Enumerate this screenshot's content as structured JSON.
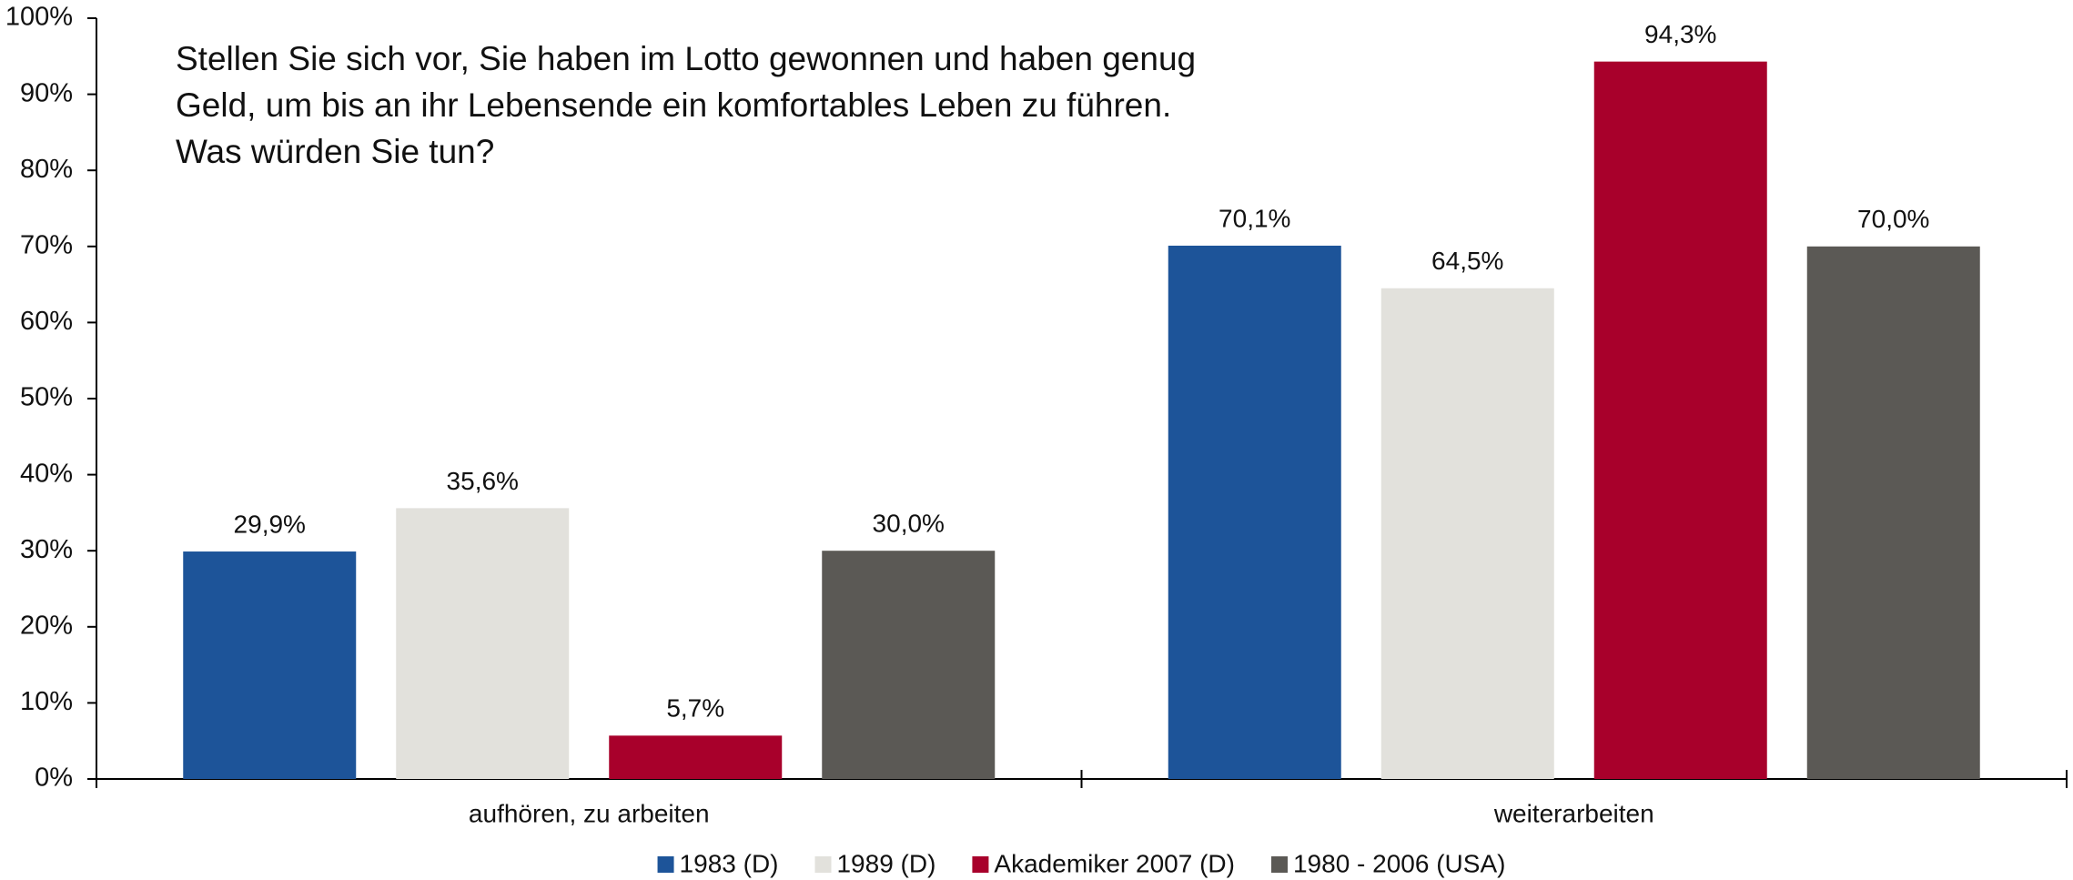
{
  "chart_data": {
    "type": "bar",
    "annotation": [
      "Stellen Sie sich vor, Sie haben im Lotto gewonnen und haben genug",
      "Geld, um bis an ihr Lebensende ein komfortables Leben zu führen.",
      "Was würden Sie tun?"
    ],
    "categories": [
      "aufhören, zu arbeiten",
      "weiterarbeiten"
    ],
    "series": [
      {
        "name": "1983 (D)",
        "color": "#1d5499",
        "values": [
          29.9,
          70.1
        ],
        "value_labels": [
          "29,9%",
          "70,1%"
        ]
      },
      {
        "name": "1989 (D)",
        "color": "#e2e1dc",
        "values": [
          35.6,
          64.5
        ],
        "value_labels": [
          "35,6%",
          "64,5%"
        ]
      },
      {
        "name": "Akademiker 2007 (D)",
        "color": "#a8002b",
        "values": [
          5.7,
          94.3
        ],
        "value_labels": [
          "5,7%",
          "94,3%"
        ]
      },
      {
        "name": "1980 - 2006 (USA)",
        "color": "#5b5955",
        "values": [
          30.0,
          70.0
        ],
        "value_labels": [
          "30,0%",
          "70,0%"
        ]
      }
    ],
    "ylim": [
      0,
      100
    ],
    "yticks": [
      {
        "value": 0,
        "label": "0%"
      },
      {
        "value": 10,
        "label": "10%"
      },
      {
        "value": 20,
        "label": "20%"
      },
      {
        "value": 30,
        "label": "30%"
      },
      {
        "value": 40,
        "label": "40%"
      },
      {
        "value": 50,
        "label": "50%"
      },
      {
        "value": 60,
        "label": "60%"
      },
      {
        "value": 70,
        "label": "70%"
      },
      {
        "value": 80,
        "label": "80%"
      },
      {
        "value": 90,
        "label": "90%"
      },
      {
        "value": 100,
        "label": "100%"
      }
    ]
  }
}
